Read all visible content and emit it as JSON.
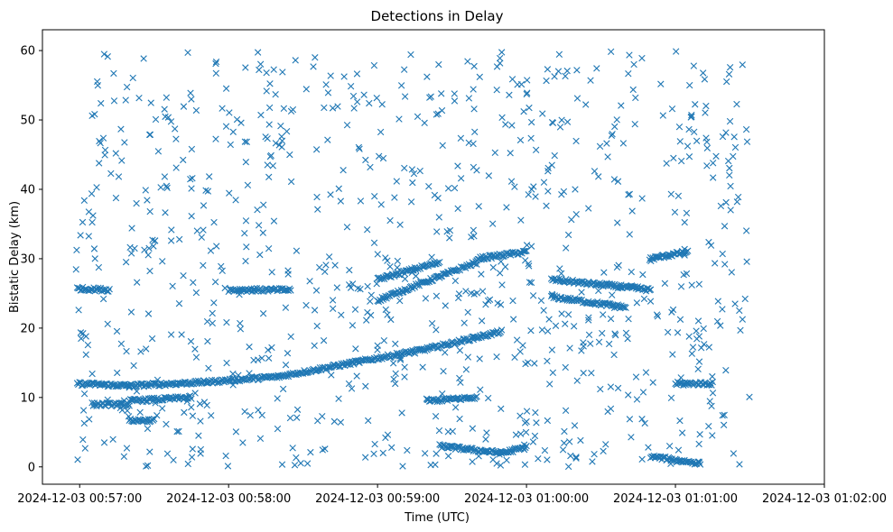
{
  "chart_data": {
    "type": "scatter",
    "title": "Detections in Delay",
    "xlabel": "Time (UTC)",
    "ylabel": "Bistatic Delay (km)",
    "marker": "x",
    "color": "#1f77b4",
    "grid": false,
    "xlim": [
      "2024-12-03 00:56:45",
      "2024-12-03 01:02:00"
    ],
    "ylim": [
      -2.5,
      63
    ],
    "xticks": [
      "2024-12-03 00:57:00",
      "2024-12-03 00:58:00",
      "2024-12-03 00:59:00",
      "2024-12-03 01:00:00",
      "2024-12-03 01:01:00",
      "2024-12-03 01:02:00"
    ],
    "yticks": [
      0,
      10,
      20,
      30,
      40,
      50,
      60
    ],
    "tracks": [
      {
        "x_start": "2024-12-03 00:56:59",
        "x_end": "2024-12-03 00:57:20",
        "y_start": 12.0,
        "y_end": 11.7
      },
      {
        "x_start": "2024-12-03 00:57:20",
        "x_end": "2024-12-03 00:57:50",
        "y_start": 11.7,
        "y_end": 12.2
      },
      {
        "x_start": "2024-12-03 00:57:50",
        "x_end": "2024-12-03 00:58:20",
        "y_start": 12.2,
        "y_end": 13.0
      },
      {
        "x_start": "2024-12-03 00:58:20",
        "x_end": "2024-12-03 00:58:50",
        "y_start": 13.0,
        "y_end": 15.0
      },
      {
        "x_start": "2024-12-03 00:58:50",
        "x_end": "2024-12-03 00:59:20",
        "y_start": 15.0,
        "y_end": 17.0
      },
      {
        "x_start": "2024-12-03 00:59:20",
        "x_end": "2024-12-03 00:59:50",
        "y_start": 17.0,
        "y_end": 19.5
      },
      {
        "x_start": "2024-12-03 00:59:00",
        "x_end": "2024-12-03 00:59:25",
        "y_start": 27.0,
        "y_end": 29.5
      },
      {
        "x_start": "2024-12-03 00:59:00",
        "x_end": "2024-12-03 00:59:40",
        "y_start": 24.0,
        "y_end": 29.5
      },
      {
        "x_start": "2024-12-03 00:59:40",
        "x_end": "2024-12-03 01:00:00",
        "y_start": 30.0,
        "y_end": 31.0
      },
      {
        "x_start": "2024-12-03 01:00:10",
        "x_end": "2024-12-03 01:00:50",
        "y_start": 27.0,
        "y_end": 25.5
      },
      {
        "x_start": "2024-12-03 01:00:10",
        "x_end": "2024-12-03 01:00:40",
        "y_start": 24.5,
        "y_end": 23.0
      },
      {
        "x_start": "2024-12-03 01:00:50",
        "x_end": "2024-12-03 01:01:05",
        "y_start": 30.0,
        "y_end": 31.0
      },
      {
        "x_start": "2024-12-03 00:59:25",
        "x_end": "2024-12-03 00:59:50",
        "y_start": 3.0,
        "y_end": 2.0
      },
      {
        "x_start": "2024-12-03 00:59:50",
        "x_end": "2024-12-03 01:00:00",
        "y_start": 2.0,
        "y_end": 2.8
      },
      {
        "x_start": "2024-12-03 01:00:50",
        "x_end": "2024-12-03 01:01:10",
        "y_start": 1.5,
        "y_end": 0.5
      },
      {
        "x_start": "2024-12-03 00:57:05",
        "x_end": "2024-12-03 00:57:20",
        "y_start": 9.0,
        "y_end": 9.0
      },
      {
        "x_start": "2024-12-03 00:57:20",
        "x_end": "2024-12-03 00:57:45",
        "y_start": 9.5,
        "y_end": 10.0
      },
      {
        "x_start": "2024-12-03 00:59:20",
        "x_end": "2024-12-03 00:59:40",
        "y_start": 9.5,
        "y_end": 10.0
      },
      {
        "x_start": "2024-12-03 00:56:59",
        "x_end": "2024-12-03 00:57:12",
        "y_start": 25.7,
        "y_end": 25.5
      },
      {
        "x_start": "2024-12-03 00:58:00",
        "x_end": "2024-12-03 00:58:25",
        "y_start": 25.5,
        "y_end": 25.5
      },
      {
        "x_start": "2024-12-03 01:01:00",
        "x_end": "2024-12-03 01:01:15",
        "y_start": 12.0,
        "y_end": 12.0
      },
      {
        "x_start": "2024-12-03 00:57:20",
        "x_end": "2024-12-03 00:57:30",
        "y_start": 6.7,
        "y_end": 6.7
      }
    ],
    "noise": {
      "x_range": [
        "2024-12-03 00:56:58",
        "2024-12-03 01:01:30"
      ],
      "y_range": [
        0,
        60
      ],
      "count": 900
    }
  }
}
